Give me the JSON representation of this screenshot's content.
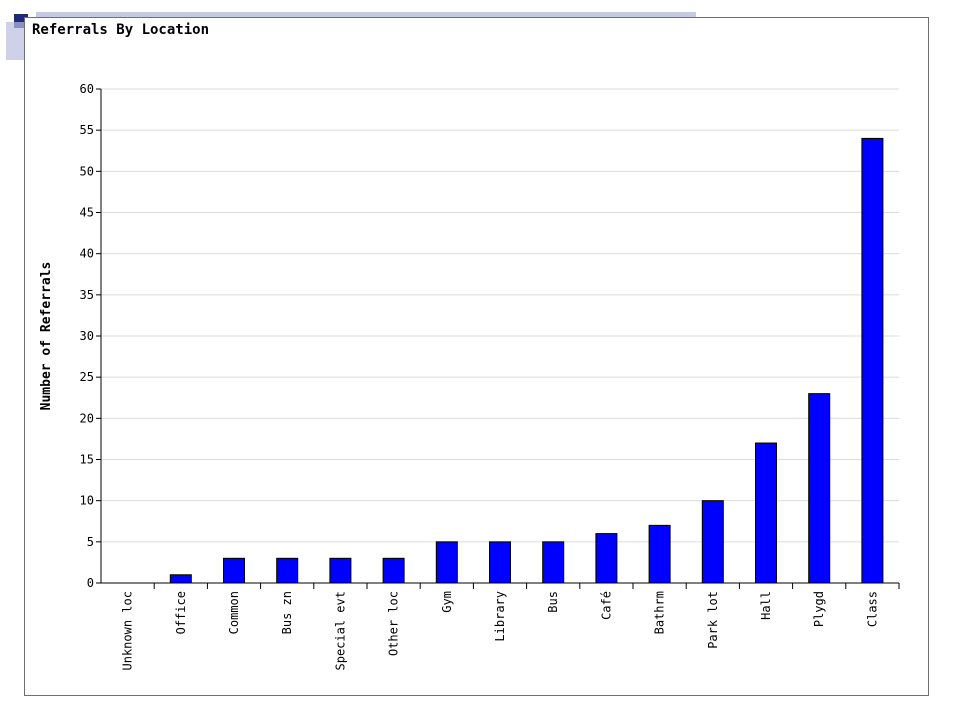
{
  "colors": {
    "bar": "#0000ff",
    "bar_outline": "#000000",
    "grid": "#dcdcdc",
    "deco_dark": "#1f2a7a",
    "deco_light": "#b9bde0"
  },
  "chart_data": {
    "type": "bar",
    "title": "Referrals By Location",
    "xlabel": "",
    "ylabel": "Number of Referrals",
    "ylim": [
      0,
      60
    ],
    "yticks": [
      0,
      5,
      10,
      15,
      20,
      25,
      30,
      35,
      40,
      45,
      50,
      55,
      60
    ],
    "grid": true,
    "categories": [
      "Unknown loc",
      "Office",
      "Common",
      "Bus zn",
      "Special evt",
      "Other loc",
      "Gym",
      "Library",
      "Bus",
      "Café",
      "Bathrm",
      "Park lot",
      "Hall",
      "Plygd",
      "Class"
    ],
    "values": [
      0,
      1,
      3,
      3,
      3,
      3,
      5,
      5,
      5,
      6,
      7,
      10,
      17,
      23,
      54
    ]
  }
}
